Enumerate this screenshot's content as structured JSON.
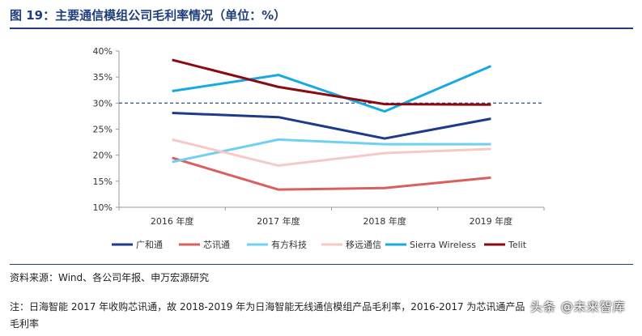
{
  "header": {
    "title": "图 19：主要通信模组公司毛利率情况（单位：%）"
  },
  "footer": {
    "source": "资料来源：Wind、各公司年报、申万宏源研究",
    "note": "注：日海智能 2017 年收购芯讯通，故 2018-2019 年为日海智能无线通信模组产品毛利率，2016-2017 为芯讯通产品毛利率",
    "watermark": "头条 @未来智库"
  },
  "chart_data": {
    "type": "line",
    "categories": [
      "2016 年度",
      "2017 年度",
      "2018 年度",
      "2019 年度"
    ],
    "ylim": [
      10,
      40
    ],
    "yticks": [
      "10%",
      "15%",
      "20%",
      "25%",
      "30%",
      "35%",
      "40%"
    ],
    "reference_line": 30,
    "legend_position": "bottom",
    "series": [
      {
        "name": "广和通",
        "values": [
          28.1,
          27.3,
          23.2,
          27.0
        ],
        "color": "#1f3a8a"
      },
      {
        "name": "芯讯通",
        "values": [
          19.5,
          13.4,
          13.7,
          15.7
        ],
        "color": "#d9605e"
      },
      {
        "name": "有方科技",
        "values": [
          18.7,
          23.0,
          22.1,
          22.1
        ],
        "color": "#6fd0f2"
      },
      {
        "name": "移远通信",
        "values": [
          23.0,
          18.0,
          20.4,
          21.2
        ],
        "color": "#f5c9c6"
      },
      {
        "name": "Sierra Wireless",
        "values": [
          32.3,
          35.4,
          28.4,
          37.1
        ],
        "color": "#19a9e2"
      },
      {
        "name": "Telit",
        "values": [
          38.3,
          33.1,
          29.8,
          29.7
        ],
        "color": "#8b0a12"
      }
    ]
  }
}
